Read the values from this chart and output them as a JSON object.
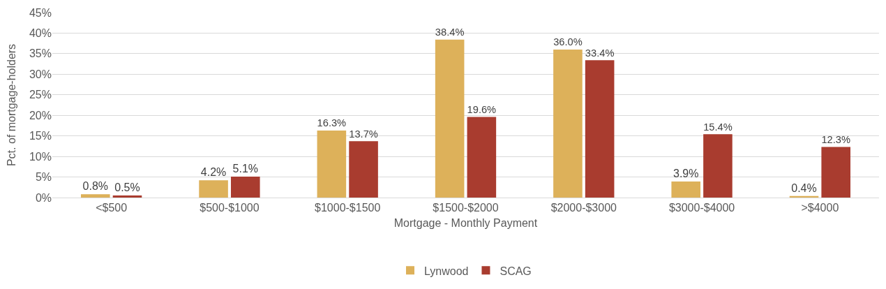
{
  "chart_data": {
    "type": "bar",
    "xlabel": "Mortgage - Monthly Payment",
    "ylabel": "Pct. of mortgage-holders",
    "categories": [
      "<$500",
      "$500-$1000",
      "$1000-$1500",
      "$1500-$2000",
      "$2000-$3000",
      "$3000-$4000",
      ">$4000"
    ],
    "series": [
      {
        "name": "Lynwood",
        "color": "#ddb15a",
        "values": [
          0.8,
          4.2,
          16.3,
          38.4,
          36.0,
          3.9,
          0.4
        ],
        "value_labels": [
          "0.8%",
          "4.2%",
          "16.3%",
          "38.4%",
          "36.0%",
          "3.9%",
          "0.4%"
        ]
      },
      {
        "name": "SCAG",
        "color": "#a93c2f",
        "values": [
          0.5,
          5.1,
          13.7,
          19.6,
          33.4,
          15.4,
          12.3
        ],
        "value_labels": [
          "0.5%",
          "5.1%",
          "13.7%",
          "19.6%",
          "33.4%",
          "15.4%",
          "12.3%"
        ]
      }
    ],
    "ylim": [
      0,
      45
    ],
    "yticks": [
      {
        "value": 0,
        "label": "0%"
      },
      {
        "value": 5,
        "label": "5%"
      },
      {
        "value": 10,
        "label": "10%"
      },
      {
        "value": 15,
        "label": "15%"
      },
      {
        "value": 20,
        "label": "20%"
      },
      {
        "value": 25,
        "label": "25%"
      },
      {
        "value": 30,
        "label": "30%"
      },
      {
        "value": 35,
        "label": "35%"
      },
      {
        "value": 40,
        "label": "40%"
      },
      {
        "value": 45,
        "label": "45%"
      }
    ],
    "grid": "y",
    "legend": "bottom"
  }
}
